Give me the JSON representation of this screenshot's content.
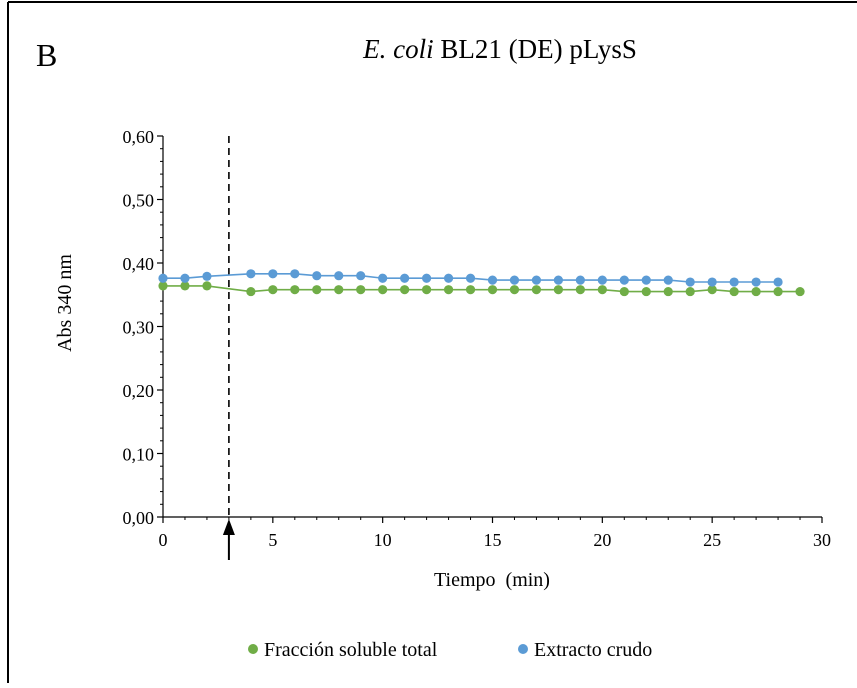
{
  "panel_letter": "B",
  "title": {
    "italic": "E. coli",
    "rest": " BL21 (DE) pLysS"
  },
  "chart_data": {
    "type": "line",
    "title": "E. coli BL21 (DE) pLysS",
    "xlabel": "Tiempo  (min)",
    "ylabel": "Abs 340 nm",
    "xlim": [
      0,
      30
    ],
    "ylim": [
      0,
      0.6
    ],
    "xticks": [
      0,
      5,
      10,
      15,
      20,
      25,
      30
    ],
    "xtick_labels": [
      "0",
      "5",
      "10",
      "15",
      "20",
      "25",
      "30"
    ],
    "yticks": [
      0,
      0.1,
      0.2,
      0.3,
      0.4,
      0.5,
      0.6
    ],
    "ytick_labels": [
      "0,00",
      "0,10",
      "0,20",
      "0,30",
      "0,40",
      "0,50",
      "0,60"
    ],
    "grid": false,
    "legend_position": "bottom",
    "annotation": {
      "type": "vertical-dashed-line-with-arrow",
      "x": 3
    },
    "series": [
      {
        "name": "Fracción soluble total",
        "color": "#70ad47",
        "x": [
          0,
          1,
          2,
          4,
          5,
          6,
          7,
          8,
          9,
          10,
          11,
          12,
          13,
          14,
          15,
          16,
          17,
          18,
          19,
          20,
          21,
          22,
          23,
          24,
          25,
          26,
          27,
          28,
          29
        ],
        "values": [
          0.364,
          0.364,
          0.364,
          0.355,
          0.358,
          0.358,
          0.358,
          0.358,
          0.358,
          0.358,
          0.358,
          0.358,
          0.358,
          0.358,
          0.358,
          0.358,
          0.358,
          0.358,
          0.358,
          0.358,
          0.355,
          0.355,
          0.355,
          0.355,
          0.358,
          0.355,
          0.355,
          0.355,
          0.355
        ]
      },
      {
        "name": "Extracto crudo",
        "color": "#5b9bd5",
        "x": [
          0,
          1,
          2,
          4,
          5,
          6,
          7,
          8,
          9,
          10,
          11,
          12,
          13,
          14,
          15,
          16,
          17,
          18,
          19,
          20,
          21,
          22,
          23,
          24,
          25,
          26,
          27,
          28
        ],
        "values": [
          0.376,
          0.376,
          0.379,
          0.383,
          0.383,
          0.383,
          0.38,
          0.38,
          0.38,
          0.376,
          0.376,
          0.376,
          0.376,
          0.376,
          0.373,
          0.373,
          0.373,
          0.373,
          0.373,
          0.373,
          0.373,
          0.373,
          0.373,
          0.37,
          0.37,
          0.37,
          0.37,
          0.37
        ]
      }
    ]
  }
}
